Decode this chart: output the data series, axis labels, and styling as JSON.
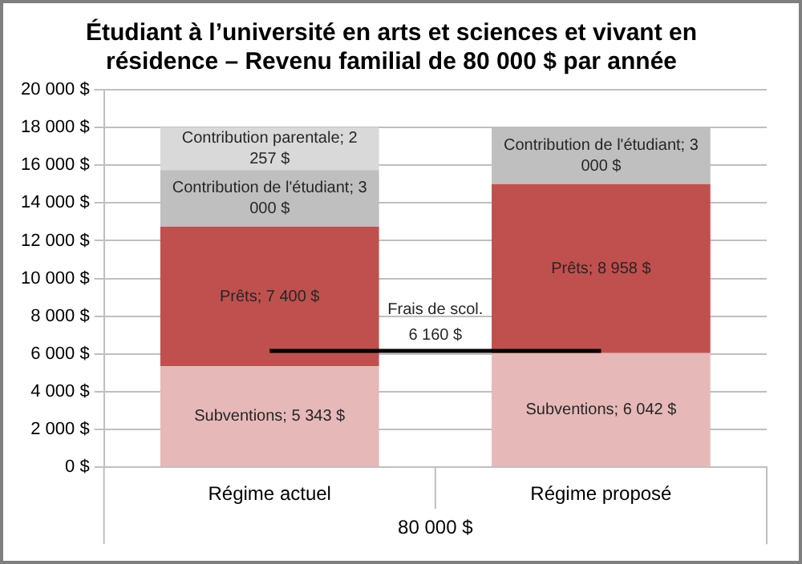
{
  "chart_data": {
    "type": "bar",
    "title": "Étudiant à l’université en arts et sciences et vivant en résidence – Revenu familial de 80 000 $ par année",
    "xlabel": "80 000 $",
    "categories": [
      "Régime actuel",
      "Régime proposé"
    ],
    "stacked": true,
    "legend": false,
    "grid": "y",
    "series": [
      {
        "name": "Subventions",
        "color": "#e6b9b8",
        "values": [
          5343,
          6042
        ],
        "value_labels": [
          "; 5 343 $",
          "; 6 042 $"
        ]
      },
      {
        "name": "Prêts",
        "color": "#c0504d",
        "values": [
          7400,
          8958
        ],
        "value_labels": [
          "; 7 400 $",
          "; 8 958 $"
        ]
      },
      {
        "name": "Contribution de l'étudiant",
        "color": "#bfbfbf",
        "values": [
          3000,
          3000
        ],
        "value_labels": [
          "; 3 000 $",
          "; 3 000 $"
        ]
      },
      {
        "name": "Contribution parentale",
        "color": "#d9d9d9",
        "values": [
          2257,
          null
        ],
        "value_labels": [
          "; 2 257 $",
          null
        ]
      }
    ],
    "ylim": [
      0,
      20000
    ],
    "yticks": [
      {
        "value": 0,
        "label": "0 $"
      },
      {
        "value": 2000,
        "label": "2 000 $"
      },
      {
        "value": 4000,
        "label": "4 000 $"
      },
      {
        "value": 6000,
        "label": "6 000 $"
      },
      {
        "value": 8000,
        "label": "8 000 $"
      },
      {
        "value": 10000,
        "label": "10 000 $"
      },
      {
        "value": 12000,
        "label": "12 000 $"
      },
      {
        "value": 14000,
        "label": "14 000 $"
      },
      {
        "value": 16000,
        "label": "16 000 $"
      },
      {
        "value": 18000,
        "label": "18 000 $"
      },
      {
        "value": 20000,
        "label": "20 000 $"
      }
    ],
    "ref_lines": [
      {
        "axis": "y",
        "value": 6160,
        "label": "Frais de scol. 6 160 $",
        "color": "#000000"
      }
    ]
  }
}
